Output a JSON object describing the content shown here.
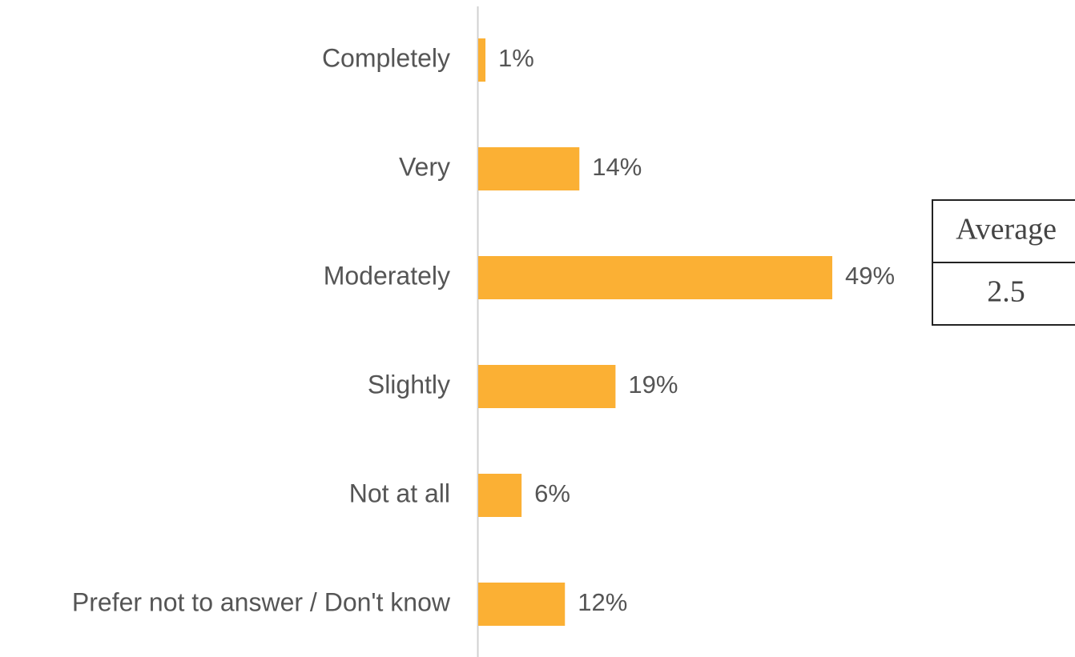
{
  "chart_data": {
    "type": "hbar",
    "categories": [
      "Completely",
      "Very",
      "Moderately",
      "Slightly",
      "Not at all",
      "Prefer not to answer / Don't know"
    ],
    "values": [
      1,
      14,
      49,
      19,
      6,
      12
    ],
    "value_labels": [
      "1%",
      "14%",
      "49%",
      "19%",
      "6%",
      "12%"
    ],
    "color": "#fbb034",
    "xlim": [
      0,
      100
    ],
    "average": {
      "header": "Average",
      "value": 2.5
    }
  }
}
